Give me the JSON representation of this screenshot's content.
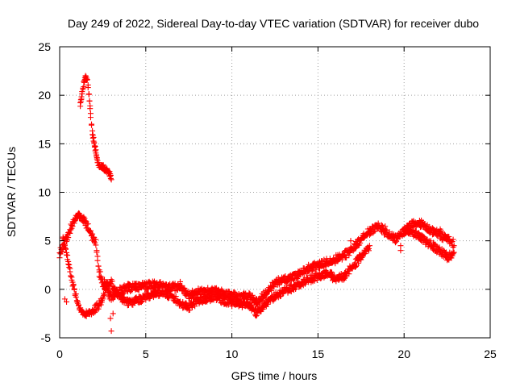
{
  "chart_data": {
    "type": "scatter",
    "title": "Day 249 of 2022, Sidereal Day-to-day VTEC variation (SDTVAR) for receiver dubo",
    "xlabel": "GPS time / hours",
    "ylabel": "SDTVAR / TECUs",
    "xlim": [
      0,
      25
    ],
    "ylim": [
      -5,
      25
    ],
    "x_ticks": [
      0,
      5,
      10,
      15,
      20,
      25
    ],
    "y_ticks": [
      -5,
      0,
      5,
      10,
      15,
      20,
      25
    ],
    "grid": true,
    "marker": "+",
    "series": [
      {
        "name": "SDTVAR",
        "color": "#ff0000",
        "trend_points": [
          [
            0.0,
            3.5
          ],
          [
            0.25,
            4.5
          ],
          [
            0.5,
            5.5
          ],
          [
            0.8,
            6.8
          ],
          [
            1.1,
            7.4
          ],
          [
            1.4,
            7.0
          ],
          [
            1.7,
            6.0
          ],
          [
            1.9,
            5.2
          ],
          [
            2.1,
            4.6
          ],
          [
            2.3,
            1.5
          ],
          [
            2.5,
            0.5
          ],
          [
            2.8,
            -0.3
          ],
          [
            3.0,
            -1.0
          ],
          [
            3.3,
            -0.5
          ],
          [
            3.6,
            -0.3
          ],
          [
            4.0,
            0.0
          ],
          [
            4.5,
            0.1
          ],
          [
            5.0,
            0.2
          ],
          [
            5.5,
            0.3
          ],
          [
            6.0,
            0.2
          ],
          [
            6.5,
            0.0
          ],
          [
            7.0,
            0.2
          ],
          [
            7.5,
            -0.8
          ],
          [
            8.0,
            -0.5
          ],
          [
            8.5,
            -0.4
          ],
          [
            9.0,
            -0.2
          ],
          [
            9.5,
            -0.6
          ],
          [
            10.0,
            -0.8
          ],
          [
            10.5,
            -1.0
          ],
          [
            11.0,
            -0.9
          ],
          [
            11.5,
            -1.5
          ],
          [
            12.0,
            -0.6
          ],
          [
            12.5,
            0.5
          ],
          [
            13.0,
            0.8
          ],
          [
            13.5,
            1.0
          ],
          [
            14.0,
            1.5
          ],
          [
            14.5,
            2.0
          ],
          [
            15.0,
            2.3
          ],
          [
            15.5,
            2.6
          ],
          [
            16.0,
            2.9
          ],
          [
            16.5,
            3.3
          ],
          [
            17.0,
            4.0
          ],
          [
            17.5,
            5.0
          ],
          [
            18.0,
            5.8
          ],
          [
            18.5,
            6.4
          ],
          [
            19.0,
            5.5
          ],
          [
            19.5,
            5.0
          ],
          [
            20.0,
            5.8
          ],
          [
            20.5,
            6.5
          ],
          [
            21.0,
            6.6
          ],
          [
            21.5,
            6.0
          ],
          [
            22.0,
            5.6
          ],
          [
            22.5,
            5.0
          ],
          [
            22.9,
            4.5
          ]
        ],
        "secondary_points": [
          [
            0.2,
            5.5
          ],
          [
            0.4,
            4.0
          ],
          [
            0.6,
            2.0
          ],
          [
            0.8,
            0.5
          ],
          [
            1.0,
            -1.0
          ],
          [
            1.2,
            -2.0
          ],
          [
            1.5,
            -2.5
          ],
          [
            1.8,
            -2.2
          ],
          [
            2.1,
            -1.8
          ],
          [
            2.4,
            -1.2
          ],
          [
            2.7,
            0.5
          ],
          [
            3.0,
            0.8
          ],
          [
            3.3,
            -0.2
          ],
          [
            3.6,
            -0.8
          ],
          [
            4.0,
            -1.2
          ],
          [
            4.5,
            -1.0
          ],
          [
            5.0,
            -0.6
          ],
          [
            5.5,
            -0.3
          ],
          [
            6.0,
            -0.2
          ],
          [
            6.5,
            -0.5
          ],
          [
            7.0,
            -1.3
          ],
          [
            7.5,
            -1.7
          ],
          [
            8.0,
            -1.0
          ],
          [
            8.5,
            -0.8
          ],
          [
            9.0,
            -0.6
          ],
          [
            9.5,
            -1.0
          ],
          [
            10.0,
            -1.2
          ],
          [
            10.5,
            -1.3
          ],
          [
            11.0,
            -1.5
          ],
          [
            11.4,
            -2.2
          ],
          [
            11.8,
            -1.8
          ],
          [
            12.2,
            -0.8
          ],
          [
            12.6,
            -0.5
          ],
          [
            13.0,
            0.0
          ],
          [
            13.5,
            0.3
          ],
          [
            14.0,
            0.7
          ],
          [
            14.5,
            1.2
          ],
          [
            15.0,
            1.5
          ],
          [
            15.5,
            1.8
          ],
          [
            16.0,
            1.3
          ],
          [
            16.5,
            1.5
          ],
          [
            17.0,
            2.5
          ],
          [
            17.5,
            3.5
          ],
          [
            18.0,
            4.5
          ],
          [
            20.0,
            6.2
          ],
          [
            20.5,
            6.0
          ],
          [
            21.0,
            5.5
          ],
          [
            21.5,
            4.8
          ],
          [
            22.0,
            4.2
          ],
          [
            22.5,
            3.5
          ],
          [
            22.9,
            3.8
          ]
        ],
        "early_spike_points": [
          [
            1.2,
            19.0
          ],
          [
            1.3,
            20.0
          ],
          [
            1.4,
            21.0
          ],
          [
            1.5,
            21.8
          ],
          [
            1.6,
            21.5
          ],
          [
            1.7,
            20.0
          ],
          [
            1.8,
            17.8
          ],
          [
            1.9,
            16.0
          ],
          [
            2.0,
            15.0
          ],
          [
            2.1,
            14.0
          ],
          [
            2.2,
            13.0
          ],
          [
            2.3,
            12.5
          ],
          [
            2.5,
            12.5
          ],
          [
            2.7,
            12.2
          ],
          [
            2.9,
            11.8
          ],
          [
            3.0,
            11.3
          ]
        ],
        "outlier_points": [
          [
            0.3,
            -1.0
          ],
          [
            0.4,
            -1.3
          ],
          [
            2.3,
            2.0
          ],
          [
            2.6,
            1.0
          ],
          [
            2.9,
            -1.0
          ],
          [
            3.0,
            -4.3
          ],
          [
            2.95,
            -3.0
          ],
          [
            3.1,
            -2.5
          ],
          [
            16.9,
            5.0
          ],
          [
            18.9,
            6.5
          ],
          [
            18.9,
            5.8
          ],
          [
            19.8,
            4.0
          ],
          [
            19.8,
            4.5
          ],
          [
            22.1,
            6.2
          ],
          [
            22.4,
            5.5
          ]
        ]
      }
    ]
  }
}
